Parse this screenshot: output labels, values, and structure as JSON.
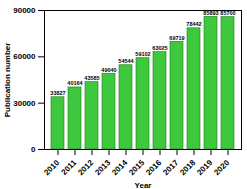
{
  "chart_data": {
    "type": "bar",
    "x_label": "Year",
    "y_label": "Publication number",
    "categories": [
      "2010",
      "2011",
      "2012",
      "2013",
      "2014",
      "2015",
      "2016",
      "2017",
      "2018",
      "2019",
      "2020"
    ],
    "values": [
      33827,
      40164,
      43585,
      49040,
      54544,
      59102,
      63025,
      69719,
      78442,
      85893,
      85700
    ],
    "color": "#3ec83e",
    "ylim": [
      0,
      90000
    ],
    "yticks": [
      0,
      30000,
      60000,
      90000
    ],
    "grid": false,
    "data_labels": true
  }
}
